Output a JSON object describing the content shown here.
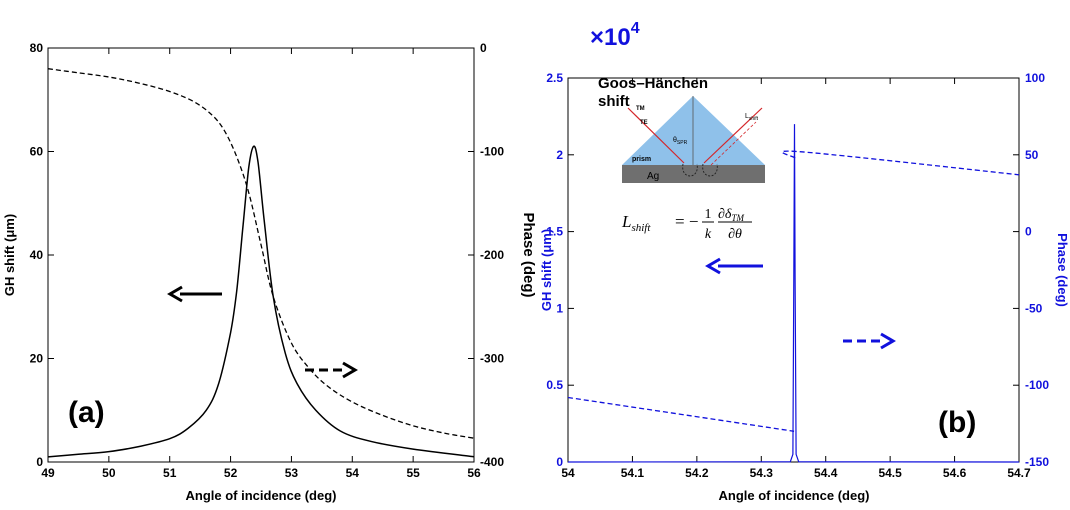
{
  "colors": {
    "black": "#000000",
    "blue": "#1111dd",
    "prism": "#8fc1ea",
    "metal": "#6f6f6f",
    "beam": "#d4262a"
  },
  "chart_data": [
    {
      "type": "line",
      "panel_label": "(a)",
      "xlabel": "Angle of incidence (deg)",
      "ylabel_left": "GH shift (μm)",
      "ylabel_right": "Phase (deg)",
      "xlim": [
        49,
        56
      ],
      "ylim_left": [
        0,
        80
      ],
      "ylim_right": [
        -400,
        0
      ],
      "xticks": [
        49,
        50,
        51,
        52,
        53,
        54,
        55,
        56
      ],
      "yticks_left": [
        0,
        20,
        40,
        60,
        80
      ],
      "yticks_right": [
        -400,
        -300,
        -200,
        -100,
        0
      ],
      "series": [
        {
          "axis": "left",
          "style": "solid",
          "x": [
            49,
            49.5,
            50,
            50.5,
            51,
            51.3,
            51.6,
            51.8,
            52,
            52.1,
            52.2,
            52.3,
            52.38,
            52.45,
            52.55,
            52.7,
            52.9,
            53.1,
            53.4,
            53.8,
            54.3,
            55,
            56
          ],
          "y": [
            1,
            1.5,
            2,
            3,
            4.5,
            6.5,
            10,
            15,
            25,
            33,
            45,
            57,
            61,
            58,
            47,
            32,
            21,
            15,
            10,
            6,
            4,
            2.5,
            1
          ]
        },
        {
          "axis": "right",
          "style": "dashed",
          "x": [
            49,
            49.5,
            50,
            50.5,
            51,
            51.4,
            51.7,
            51.9,
            52.1,
            52.3,
            52.5,
            52.7,
            53,
            53.3,
            53.6,
            54,
            54.5,
            55,
            55.5,
            56
          ],
          "y": [
            -20,
            -24,
            -28,
            -34,
            -42,
            -52,
            -65,
            -80,
            -105,
            -140,
            -190,
            -240,
            -285,
            -310,
            -327,
            -342,
            -355,
            -365,
            -372,
            -377
          ]
        }
      ],
      "arrows": [
        {
          "style": "solid",
          "direction": "left",
          "axis": "left"
        },
        {
          "style": "dashed",
          "direction": "right",
          "axis": "right"
        }
      ]
    },
    {
      "type": "line",
      "panel_label": "(b)",
      "scale_label": "×10",
      "scale_exponent": "4",
      "xlabel": "Angle of incidence (deg)",
      "ylabel_left": "GH shift (μm)",
      "ylabel_right": "Phase (deg)",
      "xlim": [
        54,
        54.7
      ],
      "ylim_left": [
        0,
        2.5
      ],
      "ylim_right": [
        -150,
        100
      ],
      "xticks": [
        54,
        54.1,
        54.2,
        54.3,
        54.4,
        54.5,
        54.6,
        54.7
      ],
      "xtick_labels": [
        "54",
        "54.1",
        "54.2",
        "54.3",
        "54.4",
        "54.5",
        "54.6",
        "54.7"
      ],
      "yticks_left": [
        0,
        0.5,
        1,
        1.5,
        2,
        2.5
      ],
      "yticks_right": [
        -150,
        -100,
        -50,
        0,
        50,
        100
      ],
      "series": [
        {
          "axis": "left",
          "style": "solid",
          "x": [
            54,
            54.345,
            54.349,
            54.3505,
            54.3515,
            54.3525,
            54.354,
            54.358,
            54.7
          ],
          "y": [
            0,
            0.001,
            0.05,
            1.2,
            2.2,
            1.2,
            0.05,
            0.001,
            0
          ]
        },
        {
          "axis": "right",
          "style": "dashed",
          "x": [
            54,
            54.351
          ],
          "y": [
            -108,
            -130
          ]
        },
        {
          "axis": "right",
          "style": "dashed",
          "x": [
            54.352,
            54.36,
            54.7
          ],
          "y": [
            48,
            52,
            37
          ]
        }
      ],
      "arrows": [
        {
          "style": "solid",
          "direction": "left",
          "axis": "left"
        },
        {
          "style": "dashed",
          "direction": "right",
          "axis": "right"
        }
      ],
      "inset": {
        "title": "Goos–Hänchen shift",
        "labels": {
          "tm": "TM",
          "te": "TE",
          "theta": "θ",
          "theta_sub": "SPR",
          "shift": "L",
          "shift_sub": "shift",
          "prism": "prism",
          "metal": "Ag"
        },
        "formula": {
          "lhs": "L",
          "lhs_sub": "shift",
          "eq": "= −",
          "one": "1",
          "k": "k",
          "num": "∂δ",
          "num_sub": "TM",
          "den": "∂θ"
        }
      }
    }
  ]
}
